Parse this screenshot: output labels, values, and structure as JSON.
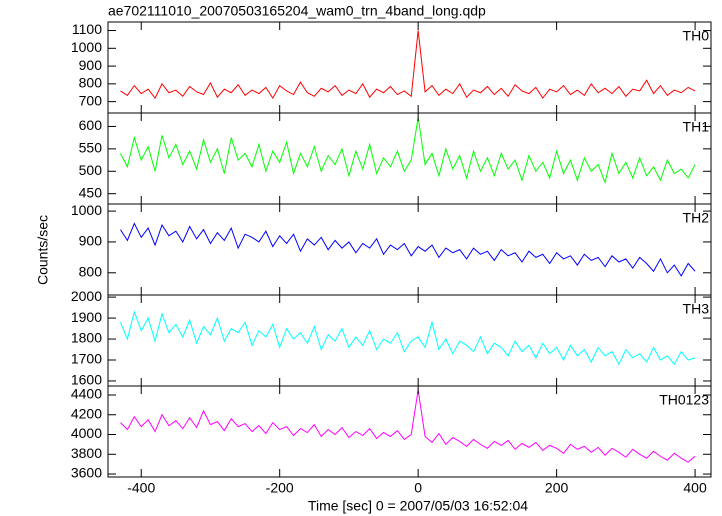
{
  "chart_data": [
    {
      "type": "line",
      "title": "ae702111010_20070503165204_wam0_trn_4band_long.qdp",
      "y_label": "Counts/sec",
      "label": "TH0",
      "x": [
        -430,
        -420,
        -410,
        -400,
        -390,
        -380,
        -370,
        -360,
        -350,
        -340,
        -330,
        -320,
        -310,
        -300,
        -290,
        -280,
        -270,
        -260,
        -250,
        -240,
        -230,
        -220,
        -210,
        -200,
        -190,
        -180,
        -170,
        -160,
        -150,
        -140,
        -130,
        -120,
        -110,
        -100,
        -90,
        -80,
        -70,
        -60,
        -50,
        -40,
        -30,
        -20,
        -10,
        0,
        10,
        20,
        30,
        40,
        50,
        60,
        70,
        80,
        90,
        100,
        110,
        120,
        130,
        140,
        150,
        160,
        170,
        180,
        190,
        200,
        210,
        220,
        230,
        240,
        250,
        260,
        270,
        280,
        290,
        300,
        310,
        320,
        330,
        340,
        350,
        360,
        370,
        380,
        390,
        400
      ],
      "series": [
        {
          "color": "#ff0000",
          "values": [
            760,
            735,
            790,
            745,
            770,
            720,
            800,
            750,
            765,
            730,
            785,
            755,
            740,
            805,
            725,
            770,
            750,
            795,
            735,
            765,
            745,
            780,
            720,
            790,
            760,
            740,
            810,
            750,
            730,
            775,
            755,
            790,
            735,
            765,
            745,
            800,
            725,
            770,
            750,
            785,
            740,
            760,
            730,
            1100,
            755,
            790,
            735,
            770,
            745,
            800,
            725,
            765,
            750,
            785,
            740,
            775,
            730,
            795,
            760,
            745,
            780,
            720,
            770,
            755,
            790,
            740,
            765,
            735,
            800,
            750,
            775,
            745,
            785,
            730,
            770,
            760,
            820,
            745,
            790,
            735,
            765,
            750,
            780,
            760
          ]
        }
      ],
      "xlim": [
        -448,
        423
      ],
      "ylim": [
        636,
        1148
      ],
      "yticks": [
        700,
        800,
        900,
        1000,
        1100
      ]
    },
    {
      "type": "line",
      "label": "TH1",
      "x": [
        -430,
        -420,
        -410,
        -400,
        -390,
        -380,
        -370,
        -360,
        -350,
        -340,
        -330,
        -320,
        -310,
        -300,
        -290,
        -280,
        -270,
        -260,
        -250,
        -240,
        -230,
        -220,
        -210,
        -200,
        -190,
        -180,
        -170,
        -160,
        -150,
        -140,
        -130,
        -120,
        -110,
        -100,
        -90,
        -80,
        -70,
        -60,
        -50,
        -40,
        -30,
        -20,
        -10,
        0,
        10,
        20,
        30,
        40,
        50,
        60,
        70,
        80,
        90,
        100,
        110,
        120,
        130,
        140,
        150,
        160,
        170,
        180,
        190,
        200,
        210,
        220,
        230,
        240,
        250,
        260,
        270,
        280,
        290,
        300,
        310,
        320,
        330,
        340,
        350,
        360,
        370,
        380,
        390,
        400
      ],
      "series": [
        {
          "color": "#00ff00",
          "values": [
            540,
            510,
            575,
            525,
            555,
            500,
            580,
            530,
            560,
            515,
            545,
            505,
            570,
            520,
            550,
            495,
            575,
            525,
            540,
            510,
            560,
            500,
            545,
            520,
            565,
            495,
            540,
            510,
            555,
            500,
            535,
            515,
            550,
            490,
            545,
            505,
            560,
            495,
            530,
            510,
            545,
            500,
            525,
            620,
            515,
            540,
            490,
            550,
            505,
            535,
            485,
            545,
            500,
            530,
            490,
            540,
            505,
            525,
            480,
            535,
            500,
            520,
            485,
            545,
            495,
            525,
            480,
            530,
            500,
            515,
            475,
            540,
            495,
            520,
            485,
            530,
            490,
            510,
            480,
            525,
            495,
            505,
            485,
            515
          ]
        }
      ],
      "xlim": [
        -448,
        423
      ],
      "ylim": [
        427,
        630
      ],
      "yticks": [
        450,
        500,
        550,
        600
      ]
    },
    {
      "type": "line",
      "label": "TH2",
      "x": [
        -430,
        -420,
        -410,
        -400,
        -390,
        -380,
        -370,
        -360,
        -350,
        -340,
        -330,
        -320,
        -310,
        -300,
        -290,
        -280,
        -270,
        -260,
        -250,
        -240,
        -230,
        -220,
        -210,
        -200,
        -190,
        -180,
        -170,
        -160,
        -150,
        -140,
        -130,
        -120,
        -110,
        -100,
        -90,
        -80,
        -70,
        -60,
        -50,
        -40,
        -30,
        -20,
        -10,
        0,
        10,
        20,
        30,
        40,
        50,
        60,
        70,
        80,
        90,
        100,
        110,
        120,
        130,
        140,
        150,
        160,
        170,
        180,
        190,
        200,
        210,
        220,
        230,
        240,
        250,
        260,
        270,
        280,
        290,
        300,
        310,
        320,
        330,
        340,
        350,
        360,
        370,
        380,
        390,
        400
      ],
      "series": [
        {
          "color": "#0000ff",
          "values": [
            940,
            905,
            960,
            915,
            945,
            890,
            955,
            920,
            935,
            900,
            950,
            910,
            940,
            895,
            930,
            905,
            945,
            880,
            925,
            915,
            900,
            935,
            885,
            920,
            895,
            925,
            870,
            910,
            890,
            915,
            875,
            905,
            880,
            900,
            865,
            895,
            880,
            910,
            860,
            890,
            875,
            895,
            855,
            885,
            870,
            890,
            850,
            880,
            865,
            875,
            845,
            880,
            860,
            870,
            840,
            875,
            855,
            865,
            835,
            870,
            850,
            860,
            830,
            865,
            845,
            855,
            825,
            860,
            840,
            850,
            820,
            855,
            835,
            845,
            815,
            850,
            830,
            805,
            845,
            800,
            825,
            790,
            830,
            805
          ]
        }
      ],
      "xlim": [
        -448,
        423
      ],
      "ylim": [
        728,
        1023
      ],
      "yticks": [
        800,
        900,
        1000
      ]
    },
    {
      "type": "line",
      "label": "TH3",
      "x": [
        -430,
        -420,
        -410,
        -400,
        -390,
        -380,
        -370,
        -360,
        -350,
        -340,
        -330,
        -320,
        -310,
        -300,
        -290,
        -280,
        -270,
        -260,
        -250,
        -240,
        -230,
        -220,
        -210,
        -200,
        -190,
        -180,
        -170,
        -160,
        -150,
        -140,
        -130,
        -120,
        -110,
        -100,
        -90,
        -80,
        -70,
        -60,
        -50,
        -40,
        -30,
        -20,
        -10,
        0,
        10,
        20,
        30,
        40,
        50,
        60,
        70,
        80,
        90,
        100,
        110,
        120,
        130,
        140,
        150,
        160,
        170,
        180,
        190,
        200,
        210,
        220,
        230,
        240,
        250,
        260,
        270,
        280,
        290,
        300,
        310,
        320,
        330,
        340,
        350,
        360,
        370,
        380,
        390,
        400
      ],
      "series": [
        {
          "color": "#00ffff",
          "values": [
            1880,
            1800,
            1930,
            1840,
            1900,
            1790,
            1920,
            1830,
            1870,
            1810,
            1890,
            1780,
            1860,
            1820,
            1900,
            1790,
            1850,
            1830,
            1880,
            1770,
            1840,
            1810,
            1870,
            1760,
            1850,
            1800,
            1830,
            1780,
            1860,
            1750,
            1820,
            1790,
            1850,
            1760,
            1810,
            1770,
            1840,
            1750,
            1800,
            1780,
            1830,
            1740,
            1790,
            1810,
            1760,
            1880,
            1750,
            1800,
            1730,
            1790,
            1770,
            1740,
            1810,
            1730,
            1780,
            1760,
            1720,
            1790,
            1740,
            1770,
            1710,
            1780,
            1730,
            1760,
            1700,
            1770,
            1720,
            1750,
            1690,
            1760,
            1720,
            1740,
            1680,
            1750,
            1710,
            1730,
            1690,
            1760,
            1700,
            1720,
            1680,
            1740,
            1700,
            1710
          ]
        }
      ],
      "xlim": [
        -448,
        423
      ],
      "ylim": [
        1576,
        2010
      ],
      "yticks": [
        1600,
        1700,
        1800,
        1900,
        2000
      ]
    },
    {
      "type": "line",
      "label": "TH0123",
      "x_label": "Time [sec] 0 = 2007/05/03 16:52:04",
      "x": [
        -430,
        -420,
        -410,
        -400,
        -390,
        -380,
        -370,
        -360,
        -350,
        -340,
        -330,
        -320,
        -310,
        -300,
        -290,
        -280,
        -270,
        -260,
        -250,
        -240,
        -230,
        -220,
        -210,
        -200,
        -190,
        -180,
        -170,
        -160,
        -150,
        -140,
        -130,
        -120,
        -110,
        -100,
        -90,
        -80,
        -70,
        -60,
        -50,
        -40,
        -30,
        -20,
        -10,
        0,
        10,
        20,
        30,
        40,
        50,
        60,
        70,
        80,
        90,
        100,
        110,
        120,
        130,
        140,
        150,
        160,
        170,
        180,
        190,
        200,
        210,
        220,
        230,
        240,
        250,
        260,
        270,
        280,
        290,
        300,
        310,
        320,
        330,
        340,
        350,
        360,
        370,
        380,
        390,
        400
      ],
      "series": [
        {
          "color": "#ff00ff",
          "values": [
            4120,
            4050,
            4180,
            4080,
            4150,
            4030,
            4200,
            4090,
            4140,
            4060,
            4170,
            4070,
            4240,
            4100,
            4130,
            4040,
            4160,
            4080,
            4110,
            4030,
            4090,
            4010,
            4120,
            4050,
            4080,
            3990,
            4060,
            4020,
            4100,
            3980,
            4050,
            4000,
            4070,
            3970,
            4030,
            3990,
            4060,
            3960,
            4020,
            3980,
            4040,
            3950,
            4000,
            4450,
            3980,
            3920,
            4010,
            3900,
            3970,
            3930,
            3880,
            3950,
            3900,
            3860,
            3930,
            3890,
            3940,
            3850,
            3910,
            3870,
            3920,
            3840,
            3890,
            3860,
            3810,
            3900,
            3850,
            3880,
            3820,
            3870,
            3790,
            3860,
            3820,
            3770,
            3850,
            3800,
            3760,
            3830,
            3780,
            3740,
            3810,
            3760,
            3720,
            3780
          ]
        }
      ],
      "xlim": [
        -448,
        423
      ],
      "ylim": [
        3570,
        4491
      ],
      "yticks": [
        3600,
        3800,
        4000,
        4200,
        4400
      ],
      "xticks": [
        -400,
        -200,
        0,
        200,
        400
      ]
    }
  ]
}
